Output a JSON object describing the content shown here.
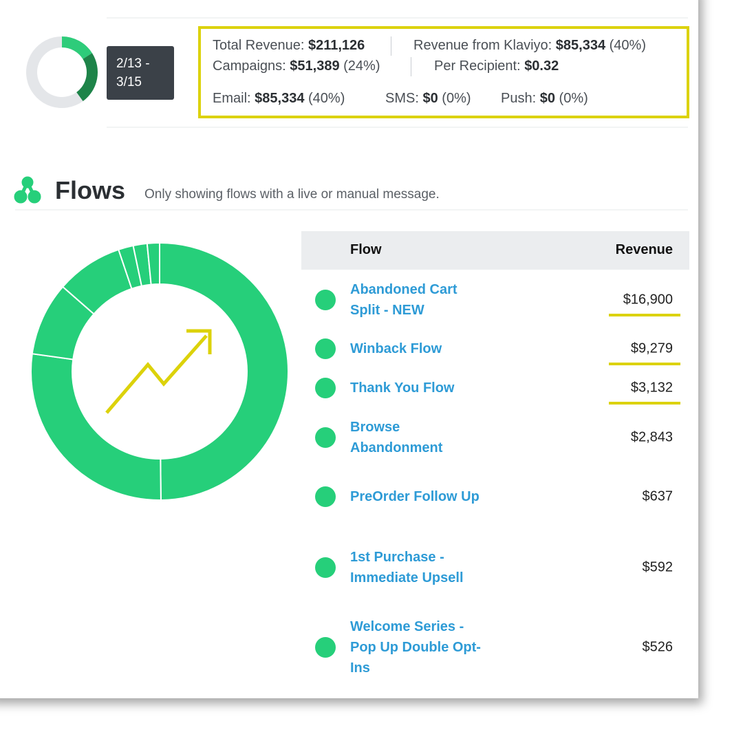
{
  "summary": {
    "date_range": "2/13 - 3/15",
    "items": [
      {
        "label": "Total Revenue:",
        "value": "$211,126"
      },
      {
        "label": "Revenue from Klaviyo:",
        "value": "$85,334",
        "pct": "(40%)"
      },
      {
        "label": "Campaigns:",
        "value": "$51,389",
        "pct": "(24%)"
      },
      {
        "label": "Per Recipient:",
        "value": "$0.32"
      },
      {
        "label": "Email:",
        "value": "$85,334",
        "pct": "(40%)"
      },
      {
        "label": "SMS:",
        "value": "$0",
        "pct": "(0%)"
      },
      {
        "label": "Push:",
        "value": "$0",
        "pct": "(0%)"
      }
    ]
  },
  "flows_section": {
    "title": "Flows",
    "subtitle": "Only showing flows with a live or manual message.",
    "table": {
      "headers": [
        "Flow",
        "Revenue"
      ]
    }
  },
  "chart_data": [
    {
      "type": "donut",
      "values": [
        16,
        24,
        60
      ],
      "colors": [
        "#2ecc7a",
        "#1e8449",
        "#e4e6e9"
      ]
    },
    {
      "type": "donut",
      "categories": [
        "Abandoned Cart Split - NEW",
        "Winback Flow",
        "Thank You Flow",
        "Browse Abandonment",
        "PreOrder Follow Up",
        "1st Purchase - Immediate Upsell",
        "Welcome Series - Pop Up Double Opt-Ins"
      ],
      "values": [
        16900,
        9279,
        3132,
        2843,
        637,
        592,
        526
      ],
      "value_labels": [
        "$16,900",
        "$9,279",
        "$3,132",
        "$2,843",
        "$637",
        "$592",
        "$526"
      ],
      "color": "#26cf7a"
    }
  ]
}
